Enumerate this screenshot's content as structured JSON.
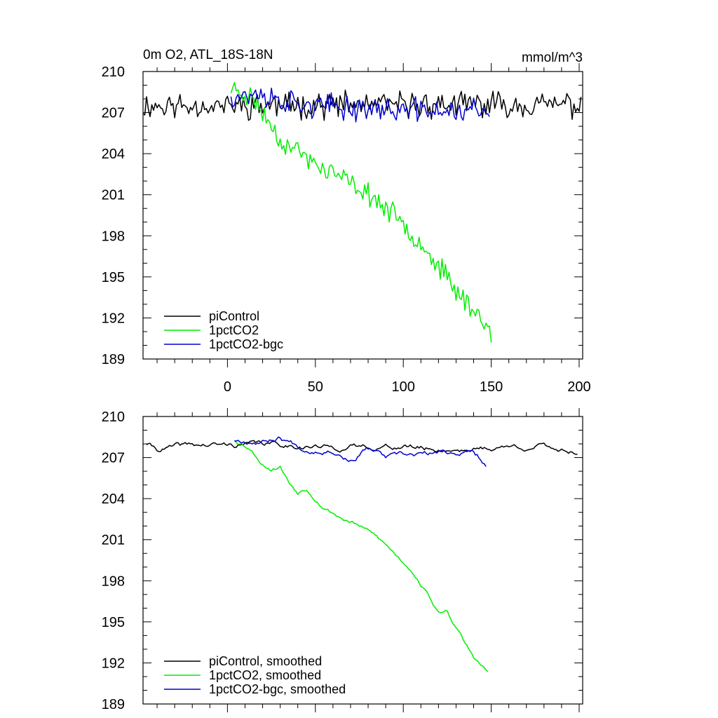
{
  "chart_data": [
    {
      "type": "line",
      "title": "0m O2, ATL_18S-18N",
      "units": "mmol/m^3",
      "xlim": [
        -48,
        202
      ],
      "ylim": [
        189,
        210
      ],
      "x_ticks": [
        0,
        50,
        100,
        150,
        200
      ],
      "x_tick_labels": [
        "0",
        "50",
        "100",
        "150",
        "200"
      ],
      "y_ticks": [
        189,
        192,
        195,
        198,
        201,
        204,
        207,
        210
      ],
      "y_tick_labels": [
        "189",
        "192",
        "195",
        "198",
        "201",
        "204",
        "207",
        "210"
      ],
      "legend_position": "bottom-left",
      "series": [
        {
          "name": "piControl",
          "color": "#000000",
          "x_start": -48,
          "x_end": 201,
          "kind": "noisy",
          "mean": 207.5,
          "amplitude": 0.9,
          "seed": 11,
          "anchors": [
            [
              -48,
              207.5
            ],
            [
              201,
              207.6
            ]
          ]
        },
        {
          "name": "1pctCO2",
          "color": "#00ee00",
          "x_start": 2,
          "x_end": 150,
          "kind": "noisy",
          "amplitude": 0.75,
          "seed": 23,
          "anchors": [
            [
              2,
              208.8
            ],
            [
              15,
              208.0
            ],
            [
              20,
              207.0
            ],
            [
              25,
              206.0
            ],
            [
              30,
              205.0
            ],
            [
              35,
              204.6
            ],
            [
              40,
              204.2
            ],
            [
              50,
              203.2
            ],
            [
              60,
              202.6
            ],
            [
              70,
              201.8
            ],
            [
              80,
              201.1
            ],
            [
              90,
              200.0
            ],
            [
              100,
              198.9
            ],
            [
              110,
              197.5
            ],
            [
              120,
              195.8
            ],
            [
              130,
              194.0
            ],
            [
              140,
              192.6
            ],
            [
              150,
              191.0
            ]
          ]
        },
        {
          "name": "1pctCO2-bgc",
          "color": "#0000cc",
          "x_start": 2,
          "x_end": 149,
          "kind": "noisy",
          "amplitude": 0.85,
          "seed": 37,
          "anchors": [
            [
              2,
              208.3
            ],
            [
              20,
              208.2
            ],
            [
              40,
              207.6
            ],
            [
              60,
              207.4
            ],
            [
              80,
              207.3
            ],
            [
              100,
              207.2
            ],
            [
              120,
              207.1
            ],
            [
              140,
              207.2
            ],
            [
              149,
              206.8
            ]
          ]
        }
      ]
    },
    {
      "type": "line",
      "xlim": [
        -48,
        202
      ],
      "ylim": [
        189,
        210
      ],
      "x_ticks": [
        0,
        50,
        100,
        150,
        200
      ],
      "y_ticks": [
        189,
        192,
        195,
        198,
        201,
        204,
        207,
        210
      ],
      "y_tick_labels": [
        "189",
        "192",
        "195",
        "198",
        "201",
        "204",
        "207",
        "210"
      ],
      "legend_position": "bottom-left",
      "series": [
        {
          "name": "piControl, smoothed",
          "color": "#000000",
          "x_start": -46,
          "x_end": 199,
          "kind": "smooth",
          "amplitude": 0.28,
          "seed": 41,
          "anchors": [
            [
              -46,
              208.0
            ],
            [
              -40,
              207.6
            ],
            [
              -20,
              207.9
            ],
            [
              0,
              207.9
            ],
            [
              20,
              208.0
            ],
            [
              40,
              207.9
            ],
            [
              60,
              207.7
            ],
            [
              80,
              207.8
            ],
            [
              100,
              207.8
            ],
            [
              120,
              207.6
            ],
            [
              140,
              207.6
            ],
            [
              160,
              207.8
            ],
            [
              180,
              207.8
            ],
            [
              199,
              207.4
            ]
          ]
        },
        {
          "name": "1pctCO2, smoothed",
          "color": "#00ee00",
          "x_start": 4,
          "x_end": 148,
          "kind": "smooth",
          "amplitude": 0.22,
          "seed": 53,
          "anchors": [
            [
              4,
              208.3
            ],
            [
              12,
              207.8
            ],
            [
              20,
              206.6
            ],
            [
              25,
              206.2
            ],
            [
              30,
              206.4
            ],
            [
              35,
              205.2
            ],
            [
              40,
              204.5
            ],
            [
              45,
              204.8
            ],
            [
              55,
              203.4
            ],
            [
              65,
              202.6
            ],
            [
              75,
              202.0
            ],
            [
              85,
              201.2
            ],
            [
              95,
              200.0
            ],
            [
              105,
              198.8
            ],
            [
              115,
              196.8
            ],
            [
              120,
              195.6
            ],
            [
              125,
              195.8
            ],
            [
              135,
              193.4
            ],
            [
              140,
              192.4
            ],
            [
              148,
              191.3
            ]
          ]
        },
        {
          "name": "1pctCO2-bgc, smoothed",
          "color": "#0000cc",
          "x_start": 4,
          "x_end": 147,
          "kind": "smooth",
          "amplitude": 0.28,
          "seed": 67,
          "anchors": [
            [
              4,
              208.3
            ],
            [
              20,
              208.2
            ],
            [
              30,
              208.5
            ],
            [
              45,
              207.6
            ],
            [
              60,
              207.6
            ],
            [
              70,
              206.8
            ],
            [
              80,
              207.7
            ],
            [
              90,
              207.0
            ],
            [
              100,
              207.1
            ],
            [
              120,
              207.3
            ],
            [
              140,
              207.4
            ],
            [
              147,
              206.6
            ]
          ]
        }
      ]
    }
  ]
}
